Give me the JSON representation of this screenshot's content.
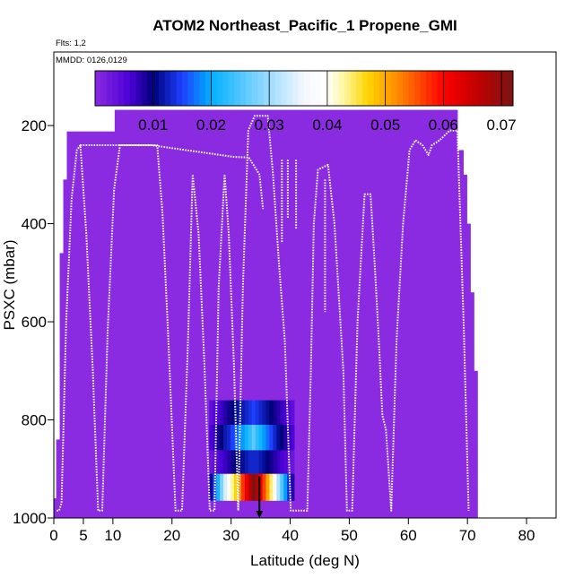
{
  "chart_data": {
    "type": "heatmap",
    "title": "ATOM2 Northeast_Pacific_1 Propene_GMI",
    "subtitle_flights": "Flts: 1,2",
    "subtitle_dates": "MMDD: 0126,0129",
    "xlabel": "Latitude (deg N)",
    "ylabel": "PSXC (mbar)",
    "xlim": [
      0,
      85
    ],
    "ylim": [
      1000,
      50
    ],
    "x_ticks": [
      0,
      5,
      10,
      20,
      30,
      40,
      50,
      60,
      70,
      80
    ],
    "y_ticks": [
      200,
      400,
      600,
      800,
      1000
    ],
    "grid": false,
    "colorbar": {
      "range": [
        0,
        0.072
      ],
      "ticks": [
        0.01,
        0.02,
        0.03,
        0.04,
        0.05,
        0.06,
        0.07
      ],
      "tick_labels": [
        "0.01",
        "0.02",
        "0.03",
        "0.04",
        "0.05",
        "0.06",
        "0.07"
      ],
      "stops": [
        {
          "v": 0.0,
          "c": "#8a2be2"
        },
        {
          "v": 0.006,
          "c": "#4b00d6"
        },
        {
          "v": 0.01,
          "c": "#00007a"
        },
        {
          "v": 0.015,
          "c": "#1e40ff"
        },
        {
          "v": 0.02,
          "c": "#00b0ff"
        },
        {
          "v": 0.03,
          "c": "#9ddcff"
        },
        {
          "v": 0.036,
          "c": "#f4f8ff"
        },
        {
          "v": 0.04,
          "c": "#ffffff"
        },
        {
          "v": 0.043,
          "c": "#fff59a"
        },
        {
          "v": 0.047,
          "c": "#ffd400"
        },
        {
          "v": 0.052,
          "c": "#ff8c00"
        },
        {
          "v": 0.06,
          "c": "#ff0000"
        },
        {
          "v": 0.066,
          "c": "#c00000"
        },
        {
          "v": 0.072,
          "c": "#7a1414"
        }
      ]
    },
    "background_fill": {
      "value": 0.0,
      "columns": [
        {
          "lat": [
            0.0,
            0.4
          ],
          "p": [
            960,
            1000
          ]
        },
        {
          "lat": [
            0.4,
            1.0
          ],
          "p": [
            840,
            1000
          ]
        },
        {
          "lat": [
            1.0,
            1.6
          ],
          "p": [
            460,
            1000
          ]
        },
        {
          "lat": [
            1.6,
            2.2
          ],
          "p": [
            310,
            1000
          ]
        },
        {
          "lat": [
            2.2,
            10.3
          ],
          "p": [
            212,
            1000
          ]
        },
        {
          "lat": [
            10.3,
            68.3
          ],
          "p": [
            168,
            1000
          ]
        },
        {
          "lat": [
            68.3,
            69.3
          ],
          "p": [
            250,
            1000
          ]
        },
        {
          "lat": [
            69.3,
            69.9
          ],
          "p": [
            300,
            1000
          ]
        },
        {
          "lat": [
            69.9,
            70.5
          ],
          "p": [
            400,
            1000
          ]
        },
        {
          "lat": [
            70.5,
            71.1
          ],
          "p": [
            540,
            1000
          ]
        },
        {
          "lat": [
            71.1,
            71.7
          ],
          "p": [
            700,
            1000
          ]
        }
      ]
    },
    "cells": {
      "lat_edges": [
        26.3,
        26.9,
        27.5,
        28.1,
        28.7,
        29.3,
        29.9,
        30.5,
        31.1,
        31.7,
        32.3,
        32.9,
        33.5,
        34.1,
        34.7,
        35.3,
        35.9,
        36.5,
        37.1,
        37.7,
        38.3,
        38.9,
        39.5,
        40.1,
        40.7
      ],
      "rows": [
        {
          "p": [
            760,
            810
          ],
          "values": [
            0.004,
            0.005,
            0.006,
            0.007,
            0.008,
            0.009,
            0.01,
            0.011,
            0.012,
            0.012,
            0.013,
            0.014,
            0.015,
            0.014,
            0.013,
            0.012,
            0.011,
            0.01,
            0.009,
            0.008,
            0.007,
            0.006,
            0.005,
            0.004
          ]
        },
        {
          "p": [
            810,
            862
          ],
          "values": [
            0.006,
            0.007,
            0.009,
            0.01,
            0.012,
            0.013,
            0.015,
            0.016,
            0.018,
            0.019,
            0.021,
            0.023,
            0.026,
            0.023,
            0.021,
            0.019,
            0.017,
            0.015,
            0.013,
            0.011,
            0.01,
            0.008,
            0.007,
            0.006
          ]
        },
        {
          "p": [
            862,
            910
          ],
          "values": [
            0.003,
            0.004,
            0.005,
            0.006,
            0.007,
            0.008,
            0.009,
            0.01,
            0.011,
            0.011,
            0.012,
            0.013,
            0.013,
            0.013,
            0.012,
            0.011,
            0.01,
            0.009,
            0.008,
            0.007,
            0.006,
            0.005,
            0.004,
            0.003
          ]
        },
        {
          "p": [
            910,
            965
          ],
          "values": [
            0.009,
            0.015,
            0.021,
            0.028,
            0.034,
            0.039,
            0.043,
            0.047,
            0.052,
            0.057,
            0.062,
            0.066,
            0.072,
            0.067,
            0.062,
            0.056,
            0.05,
            0.044,
            0.038,
            0.031,
            0.025,
            0.019,
            0.013,
            0.008
          ]
        }
      ]
    },
    "flight_track": [
      [
        0.5,
        985
      ],
      [
        0.9,
        985
      ],
      [
        1.3,
        970
      ],
      [
        2.1,
        600
      ],
      [
        3.0,
        350
      ],
      [
        3.9,
        250
      ],
      [
        4.5,
        240
      ],
      [
        5.5,
        420
      ],
      [
        6.6,
        700
      ],
      [
        7.5,
        985
      ],
      [
        8.2,
        985
      ],
      [
        9.1,
        620
      ],
      [
        10.2,
        330
      ],
      [
        11.2,
        240
      ],
      [
        12.3,
        240
      ],
      [
        16.5,
        240
      ],
      [
        17.5,
        240
      ],
      [
        18.4,
        380
      ],
      [
        19.4,
        640
      ],
      [
        20.6,
        985
      ],
      [
        21.7,
        985
      ],
      [
        22.7,
        640
      ],
      [
        23.5,
        300
      ],
      [
        24.5,
        420
      ],
      [
        25.5,
        690
      ],
      [
        26.4,
        985
      ],
      [
        27.2,
        985
      ],
      [
        27.9,
        530
      ],
      [
        28.9,
        300
      ],
      [
        29.6,
        420
      ],
      [
        30.5,
        690
      ],
      [
        31.2,
        985
      ],
      [
        32.0,
        530
      ],
      [
        32.9,
        210
      ],
      [
        34.0,
        180
      ],
      [
        36.2,
        180
      ],
      [
        37.1,
        300
      ],
      [
        38.1,
        480
      ],
      [
        39.1,
        640
      ],
      [
        40.1,
        985
      ],
      [
        42.9,
        985
      ],
      [
        43.5,
        700
      ],
      [
        44.0,
        400
      ],
      [
        44.7,
        290
      ],
      [
        46.4,
        280
      ],
      [
        47.5,
        400
      ],
      [
        48.3,
        560
      ],
      [
        49.0,
        700
      ],
      [
        49.6,
        985
      ],
      [
        50.5,
        985
      ],
      [
        51.4,
        600
      ],
      [
        52.6,
        340
      ],
      [
        53.6,
        340
      ],
      [
        54.3,
        480
      ],
      [
        55.0,
        640
      ],
      [
        55.6,
        790
      ],
      [
        56.2,
        820
      ],
      [
        57.1,
        985
      ],
      [
        58.0,
        640
      ],
      [
        59.1,
        400
      ],
      [
        60.2,
        250
      ],
      [
        61.2,
        230
      ],
      [
        62.4,
        240
      ],
      [
        63.4,
        260
      ],
      [
        64.0,
        240
      ],
      [
        65.3,
        230
      ],
      [
        67.0,
        210
      ],
      [
        68.3,
        210
      ],
      [
        69.4,
        620
      ],
      [
        70.2,
        985
      ]
    ],
    "flight_track_upper": [
      [
        4.5,
        240
      ],
      [
        16.5,
        240
      ],
      [
        30.5,
        264
      ],
      [
        33.0,
        265
      ],
      [
        34.8,
        300
      ],
      [
        35.4,
        370
      ]
    ],
    "profiles": [
      {
        "lat": 38.6,
        "p_top": 270,
        "p_bottom": 440
      },
      {
        "lat": 39.6,
        "p_top": 270,
        "p_bottom": 390
      },
      {
        "lat": 41.0,
        "p_top": 270,
        "p_bottom": 410
      },
      {
        "lat": 45.9,
        "p_top": 310,
        "p_bottom": 580
      }
    ],
    "marker": {
      "type": "arrow-down",
      "lat": 34.8,
      "p_top": 915,
      "p_bottom": 1000
    }
  }
}
